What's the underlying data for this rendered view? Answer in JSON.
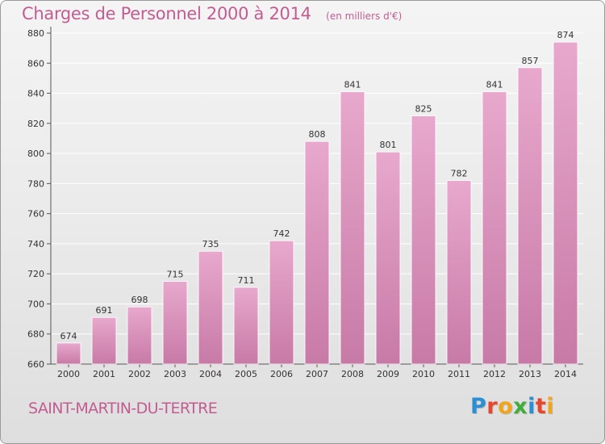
{
  "header": {
    "title": "Charges de Personnel 2000 à 2014",
    "unit_note": "(en milliers d'€)"
  },
  "footer": {
    "commune": "SAINT-MARTIN-DU-TERTRE",
    "logo": {
      "letters": [
        "P",
        "r",
        "o",
        "x",
        "i",
        "t",
        "i"
      ],
      "colors": [
        "#2b8fd6",
        "#e8452c",
        "#f2a51a",
        "#3fae3a",
        "#2b8fd6",
        "#e8452c",
        "#f2a51a"
      ]
    }
  },
  "colors": {
    "bar_light": "#e8a8cd",
    "bar_dark": "#c77aa6",
    "accent": "#c25c92",
    "grid": "#ffffff"
  },
  "chart_data": {
    "type": "bar",
    "title": "Charges de Personnel 2000 à 2014",
    "subtitle": "(en milliers d'€)",
    "categories": [
      "2000",
      "2001",
      "2002",
      "2003",
      "2004",
      "2005",
      "2006",
      "2007",
      "2008",
      "2009",
      "2010",
      "2011",
      "2012",
      "2013",
      "2014"
    ],
    "values": [
      674,
      691,
      698,
      715,
      735,
      711,
      742,
      808,
      841,
      801,
      825,
      782,
      841,
      857,
      874
    ],
    "yticks": [
      660,
      680,
      700,
      720,
      740,
      760,
      780,
      800,
      820,
      840,
      860,
      880
    ],
    "ylim": [
      660,
      880
    ],
    "grid": true,
    "data_labels": true
  }
}
